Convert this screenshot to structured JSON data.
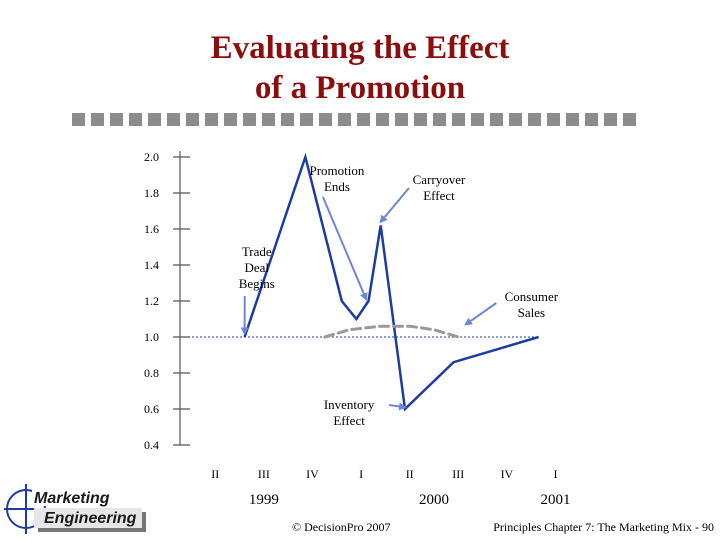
{
  "slide": {
    "title_line1": "Evaluating the Effect",
    "title_line2": "of a Promotion",
    "copyright": "© DecisionPro 2007",
    "footer": "Principles Chapter 7: The Marketing Mix - 90",
    "logo_line1": "Marketing",
    "logo_line2": "Engineering",
    "colors": {
      "title": "#8b0d0d",
      "series": "#1e3ca0",
      "arrow": "#6f86d6",
      "baseline_dash": "#1e3ca0",
      "carryover": "#999999",
      "squares": "#8c8c8c"
    }
  },
  "chart_data": {
    "type": "line",
    "title": "",
    "ylim": [
      0.4,
      2.0
    ],
    "yticks": [
      "2.0",
      "1.8",
      "1.6",
      "1.4",
      "1.2",
      "1.0",
      "0.8",
      "0.6",
      "0.4"
    ],
    "ytick_values": [
      2.0,
      1.8,
      1.6,
      1.4,
      1.2,
      1.0,
      0.8,
      0.6,
      0.4
    ],
    "xlim": [
      0,
      12
    ],
    "quarter_ticks": [
      {
        "label": "II",
        "x": 1
      },
      {
        "label": "III",
        "x": 3
      },
      {
        "label": "IV",
        "x": 5
      },
      {
        "label": "I",
        "x": 7
      },
      {
        "label": "II",
        "x": 9
      },
      {
        "label": "III",
        "x": 11
      },
      {
        "label": "IV",
        "x": 13
      },
      {
        "label": "I",
        "x": 15
      }
    ],
    "years": [
      {
        "label": "1999",
        "x": 3
      },
      {
        "label": "2000",
        "x": 10
      },
      {
        "label": "2001",
        "x": 15
      }
    ],
    "baseline": 1.0,
    "series": [
      {
        "name": "Consumer Sales",
        "points": [
          [
            2,
            1.0
          ],
          [
            4.5,
            2.0
          ],
          [
            6,
            1.2
          ],
          [
            6.6,
            1.1
          ],
          [
            7.1,
            1.2
          ],
          [
            7.6,
            1.62
          ],
          [
            8.6,
            0.6
          ],
          [
            10.6,
            0.86
          ],
          [
            14.1,
            1.0
          ]
        ]
      },
      {
        "name": "Carryover Effect",
        "style": "dashed",
        "points": [
          [
            5.3,
            1.0
          ],
          [
            6.3,
            1.04
          ],
          [
            7.6,
            1.06
          ],
          [
            8.8,
            1.06
          ],
          [
            9.8,
            1.04
          ],
          [
            10.8,
            1.0
          ]
        ]
      }
    ],
    "annotations": [
      {
        "name": "trade-deal",
        "lines": [
          "Trade",
          "Deal",
          "Begins"
        ],
        "text_at": [
          2.5,
          1.45
        ],
        "arrow_to": [
          2.0,
          1.02
        ]
      },
      {
        "name": "promotion-ends",
        "lines": [
          "Promotion",
          "Ends"
        ],
        "text_at": [
          5.8,
          1.9
        ],
        "arrow_to": [
          7.0,
          1.21
        ]
      },
      {
        "name": "carryover",
        "lines": [
          "Carryover",
          "Effect"
        ],
        "text_at": [
          10.0,
          1.85
        ],
        "arrow_to": [
          7.6,
          1.64
        ]
      },
      {
        "name": "consumer-sales",
        "lines": [
          "Consumer",
          "Sales"
        ],
        "text_at": [
          13.8,
          1.2
        ],
        "arrow_to": [
          11.1,
          1.07
        ]
      },
      {
        "name": "inventory",
        "lines": [
          "Inventory",
          "Effect"
        ],
        "text_at": [
          6.3,
          0.6
        ],
        "arrow_to": [
          8.6,
          0.61
        ]
      }
    ]
  }
}
